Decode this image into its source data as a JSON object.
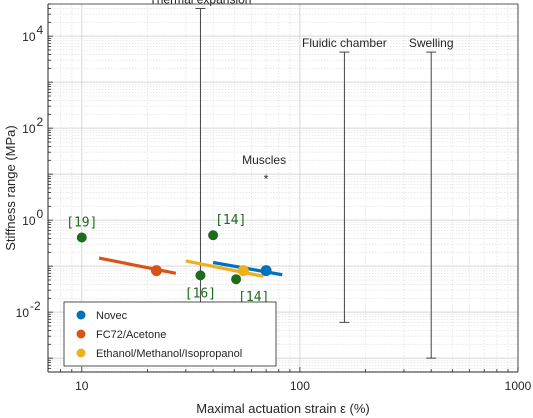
{
  "chart_data": {
    "type": "scatter",
    "xlabel": "Maximal actuation strain ε (%)",
    "ylabel": "Stiffness range (MPa)",
    "xscale": "log",
    "yscale": "log",
    "xlim": [
      7,
      1000
    ],
    "ylim": [
      0.0005,
      50000
    ],
    "grid": true,
    "x_ticks": [
      {
        "value": 10,
        "label": "10"
      },
      {
        "value": 100,
        "label": "100"
      },
      {
        "value": 1000,
        "label": "1000"
      }
    ],
    "y_ticks": [
      {
        "value": 0.01,
        "base": "10",
        "exp": "-2"
      },
      {
        "value": 1,
        "base": "10",
        "exp": "0"
      },
      {
        "value": 100,
        "base": "10",
        "exp": "2"
      },
      {
        "value": 10000,
        "base": "10",
        "exp": "4"
      }
    ],
    "legend_position": "bottom-left",
    "legend": [
      {
        "name": "Novec",
        "color": "#0072BD"
      },
      {
        "name": "FC72/Acetone",
        "color": "#D95319"
      },
      {
        "name": "Ethanol/Methanol/Isopropanol",
        "color": "#EDB120"
      }
    ],
    "fit_lines": [
      {
        "series": "Novec",
        "color": "#0072BD",
        "x": [
          40,
          83
        ],
        "y": [
          0.12,
          0.065
        ]
      },
      {
        "series": "FC72/Acetone",
        "color": "#D95319",
        "x": [
          12,
          27
        ],
        "y": [
          0.15,
          0.07
        ]
      },
      {
        "series": "Ethanol/Methanol/Isopropanol",
        "color": "#EDB120",
        "x": [
          30,
          68
        ],
        "y": [
          0.13,
          0.06
        ]
      }
    ],
    "points": [
      {
        "series": "Novec",
        "color": "#0072BD",
        "x": 70,
        "y": 0.08
      },
      {
        "series": "FC72/Acetone",
        "color": "#D95319",
        "x": 22,
        "y": 0.08
      },
      {
        "series": "Ethanol/Methanol/Isopropanol",
        "color": "#EDB120",
        "x": 55,
        "y": 0.08
      }
    ],
    "reference_points": [
      {
        "x": 10,
        "y": 0.42,
        "color": "#1E6B1E",
        "label": "[19]"
      },
      {
        "x": 40,
        "y": 0.47,
        "color": "#1E6B1E",
        "label": "[14]"
      },
      {
        "x": 35,
        "y": 0.063,
        "color": "#1E6B1E",
        "label": "[16]"
      },
      {
        "x": 51,
        "y": 0.052,
        "color": "#1E6B1E",
        "label": "[14]"
      }
    ],
    "ranges": [
      {
        "label": "Thermal expansion",
        "x": 35,
        "ymin": 0.016,
        "ymax": 40000
      },
      {
        "label": "Fluidic chamber",
        "x": 160,
        "ymin": 0.006,
        "ymax": 4500
      },
      {
        "label": "Swelling",
        "x": 400,
        "ymin": 0.001,
        "ymax": 4500
      }
    ],
    "markers": [
      {
        "label": "Muscles",
        "x": 70,
        "y": 10,
        "symbol": "*"
      }
    ]
  }
}
